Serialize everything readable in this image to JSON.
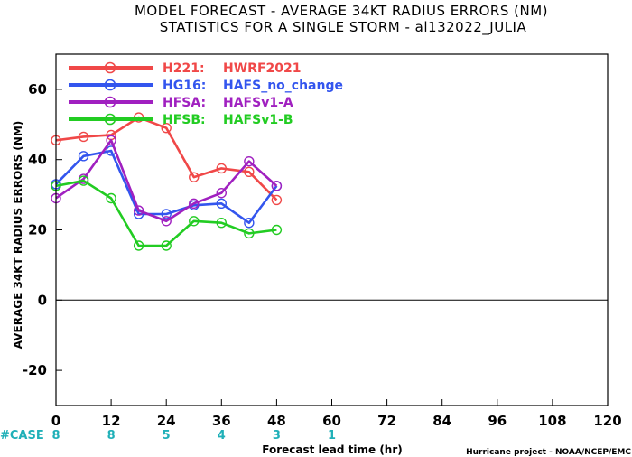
{
  "chart_data": {
    "type": "line",
    "title": "MODEL FORECAST - AVERAGE 34KT RADIUS ERRORS (NM)",
    "subtitle": "STATISTICS FOR A SINGLE STORM - al132022_JULIA",
    "xlabel": "Forecast lead time (hr)",
    "ylabel": "AVERAGE 34KT RADIUS ERRORS (NM)",
    "xlim": [
      0,
      120
    ],
    "ylim": [
      -30,
      70
    ],
    "x_ticks": [
      "0",
      "12",
      "24",
      "36",
      "48",
      "60",
      "72",
      "84",
      "96",
      "108",
      "120"
    ],
    "y_ticks": [
      "-20",
      "0",
      "20",
      "40",
      "60"
    ],
    "case_label": "#CASE",
    "cases": [
      {
        "x": 0,
        "label": "8"
      },
      {
        "x": 12,
        "label": "8"
      },
      {
        "x": 24,
        "label": "5"
      },
      {
        "x": 36,
        "label": "4"
      },
      {
        "x": 48,
        "label": "3"
      },
      {
        "x": 60,
        "label": "1"
      }
    ],
    "credit": "Hurricane project - NOAA/NCEP/EMC",
    "series": [
      {
        "code": "H221:",
        "name": "HWRF2021",
        "color": "#f04848",
        "x": [
          0,
          6,
          12,
          18,
          24,
          30,
          36,
          42,
          48
        ],
        "values": [
          45.5,
          46.5,
          47,
          52,
          49,
          35,
          37.5,
          36.5,
          28.5
        ]
      },
      {
        "code": "HG16:",
        "name": "HAFS_no_change",
        "color": "#3355ee",
        "x": [
          0,
          6,
          12,
          18,
          24,
          30,
          36,
          42,
          48
        ],
        "values": [
          33,
          41,
          42.5,
          24.5,
          24.5,
          27,
          27.5,
          22,
          32.5
        ]
      },
      {
        "code": "HFSA:",
        "name": "HAFSv1-A",
        "color": "#a020c0",
        "x": [
          0,
          6,
          12,
          18,
          24,
          30,
          36,
          42,
          48
        ],
        "values": [
          29,
          34.5,
          45.5,
          25.5,
          22.5,
          27.5,
          30.5,
          39.5,
          32.5
        ]
      },
      {
        "code": "HFSB:",
        "name": "HAFSv1-B",
        "color": "#22cc22",
        "x": [
          0,
          6,
          12,
          18,
          24,
          30,
          36,
          42,
          48
        ],
        "values": [
          32.5,
          34,
          29,
          15.5,
          15.5,
          22.5,
          22,
          19,
          20
        ]
      }
    ]
  }
}
